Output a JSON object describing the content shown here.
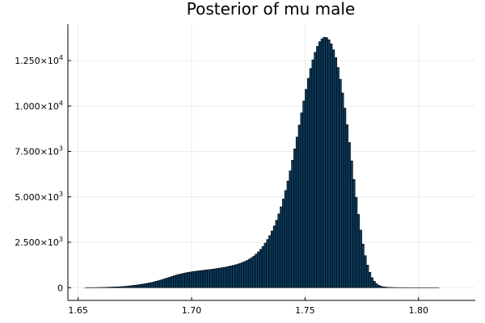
{
  "chart_data": {
    "type": "bar",
    "title": "Posterior of mu male",
    "xlabel": "",
    "ylabel": "",
    "xlim": [
      1.6455,
      1.825
    ],
    "ylim": [
      -700,
      14500
    ],
    "grid": true,
    "legend": "none",
    "bin_width": 0.001,
    "x_start": 1.653,
    "x_ticks": [
      {
        "value": 1.65,
        "label": "1.65"
      },
      {
        "value": 1.7,
        "label": "1.70"
      },
      {
        "value": 1.75,
        "label": "1.75"
      },
      {
        "value": 1.8,
        "label": "1.80"
      }
    ],
    "y_ticks": [
      {
        "value": 0,
        "mant": "0",
        "exp": ""
      },
      {
        "value": 2500,
        "mant": "2.500×10",
        "exp": "3"
      },
      {
        "value": 5000,
        "mant": "5.000×10",
        "exp": "3"
      },
      {
        "value": 7500,
        "mant": "7.500×10",
        "exp": "3"
      },
      {
        "value": 10000,
        "mant": "1.000×10",
        "exp": "4"
      },
      {
        "value": 12500,
        "mant": "1.250×10",
        "exp": "4"
      }
    ],
    "values": [
      2,
      3,
      4,
      5,
      6,
      8,
      10,
      13,
      16,
      20,
      25,
      30,
      35,
      40,
      45,
      52,
      60,
      70,
      82,
      95,
      110,
      125,
      140,
      158,
      175,
      195,
      215,
      238,
      262,
      288,
      318,
      350,
      385,
      420,
      460,
      500,
      540,
      580,
      620,
      660,
      700,
      730,
      760,
      790,
      815,
      840,
      860,
      880,
      900,
      915,
      930,
      945,
      960,
      975,
      990,
      1005,
      1020,
      1040,
      1060,
      1080,
      1100,
      1120,
      1145,
      1170,
      1200,
      1230,
      1260,
      1300,
      1340,
      1390,
      1440,
      1500,
      1570,
      1650,
      1740,
      1850,
      1970,
      2110,
      2270,
      2450,
      2650,
      2870,
      3120,
      3400,
      3710,
      4060,
      4450,
      4880,
      5350,
      5870,
      6430,
      7020,
      7640,
      8290,
      8950,
      9620,
      10280,
      10920,
      11520,
      12060,
      12540,
      12950,
      13280,
      13540,
      13700,
      13780,
      13760,
      13640,
      13420,
      13090,
      12660,
      12120,
      11470,
      10720,
      9880,
      8970,
      7990,
      6980,
      5960,
      4970,
      4030,
      3170,
      2400,
      1760,
      1240,
      840,
      550,
      350,
      215,
      130,
      78,
      48,
      30,
      20,
      14,
      10,
      8,
      6,
      5,
      4,
      3,
      3,
      2,
      2,
      2,
      2,
      1,
      1,
      1,
      1,
      1,
      1,
      1,
      1,
      1,
      1,
      0,
      0,
      0,
      0,
      0,
      0,
      0
    ],
    "colors": {
      "bar_fill": "#0a3a5c",
      "bar_stroke": "#000000",
      "grid": "#ececec",
      "axis": "#000000"
    }
  }
}
